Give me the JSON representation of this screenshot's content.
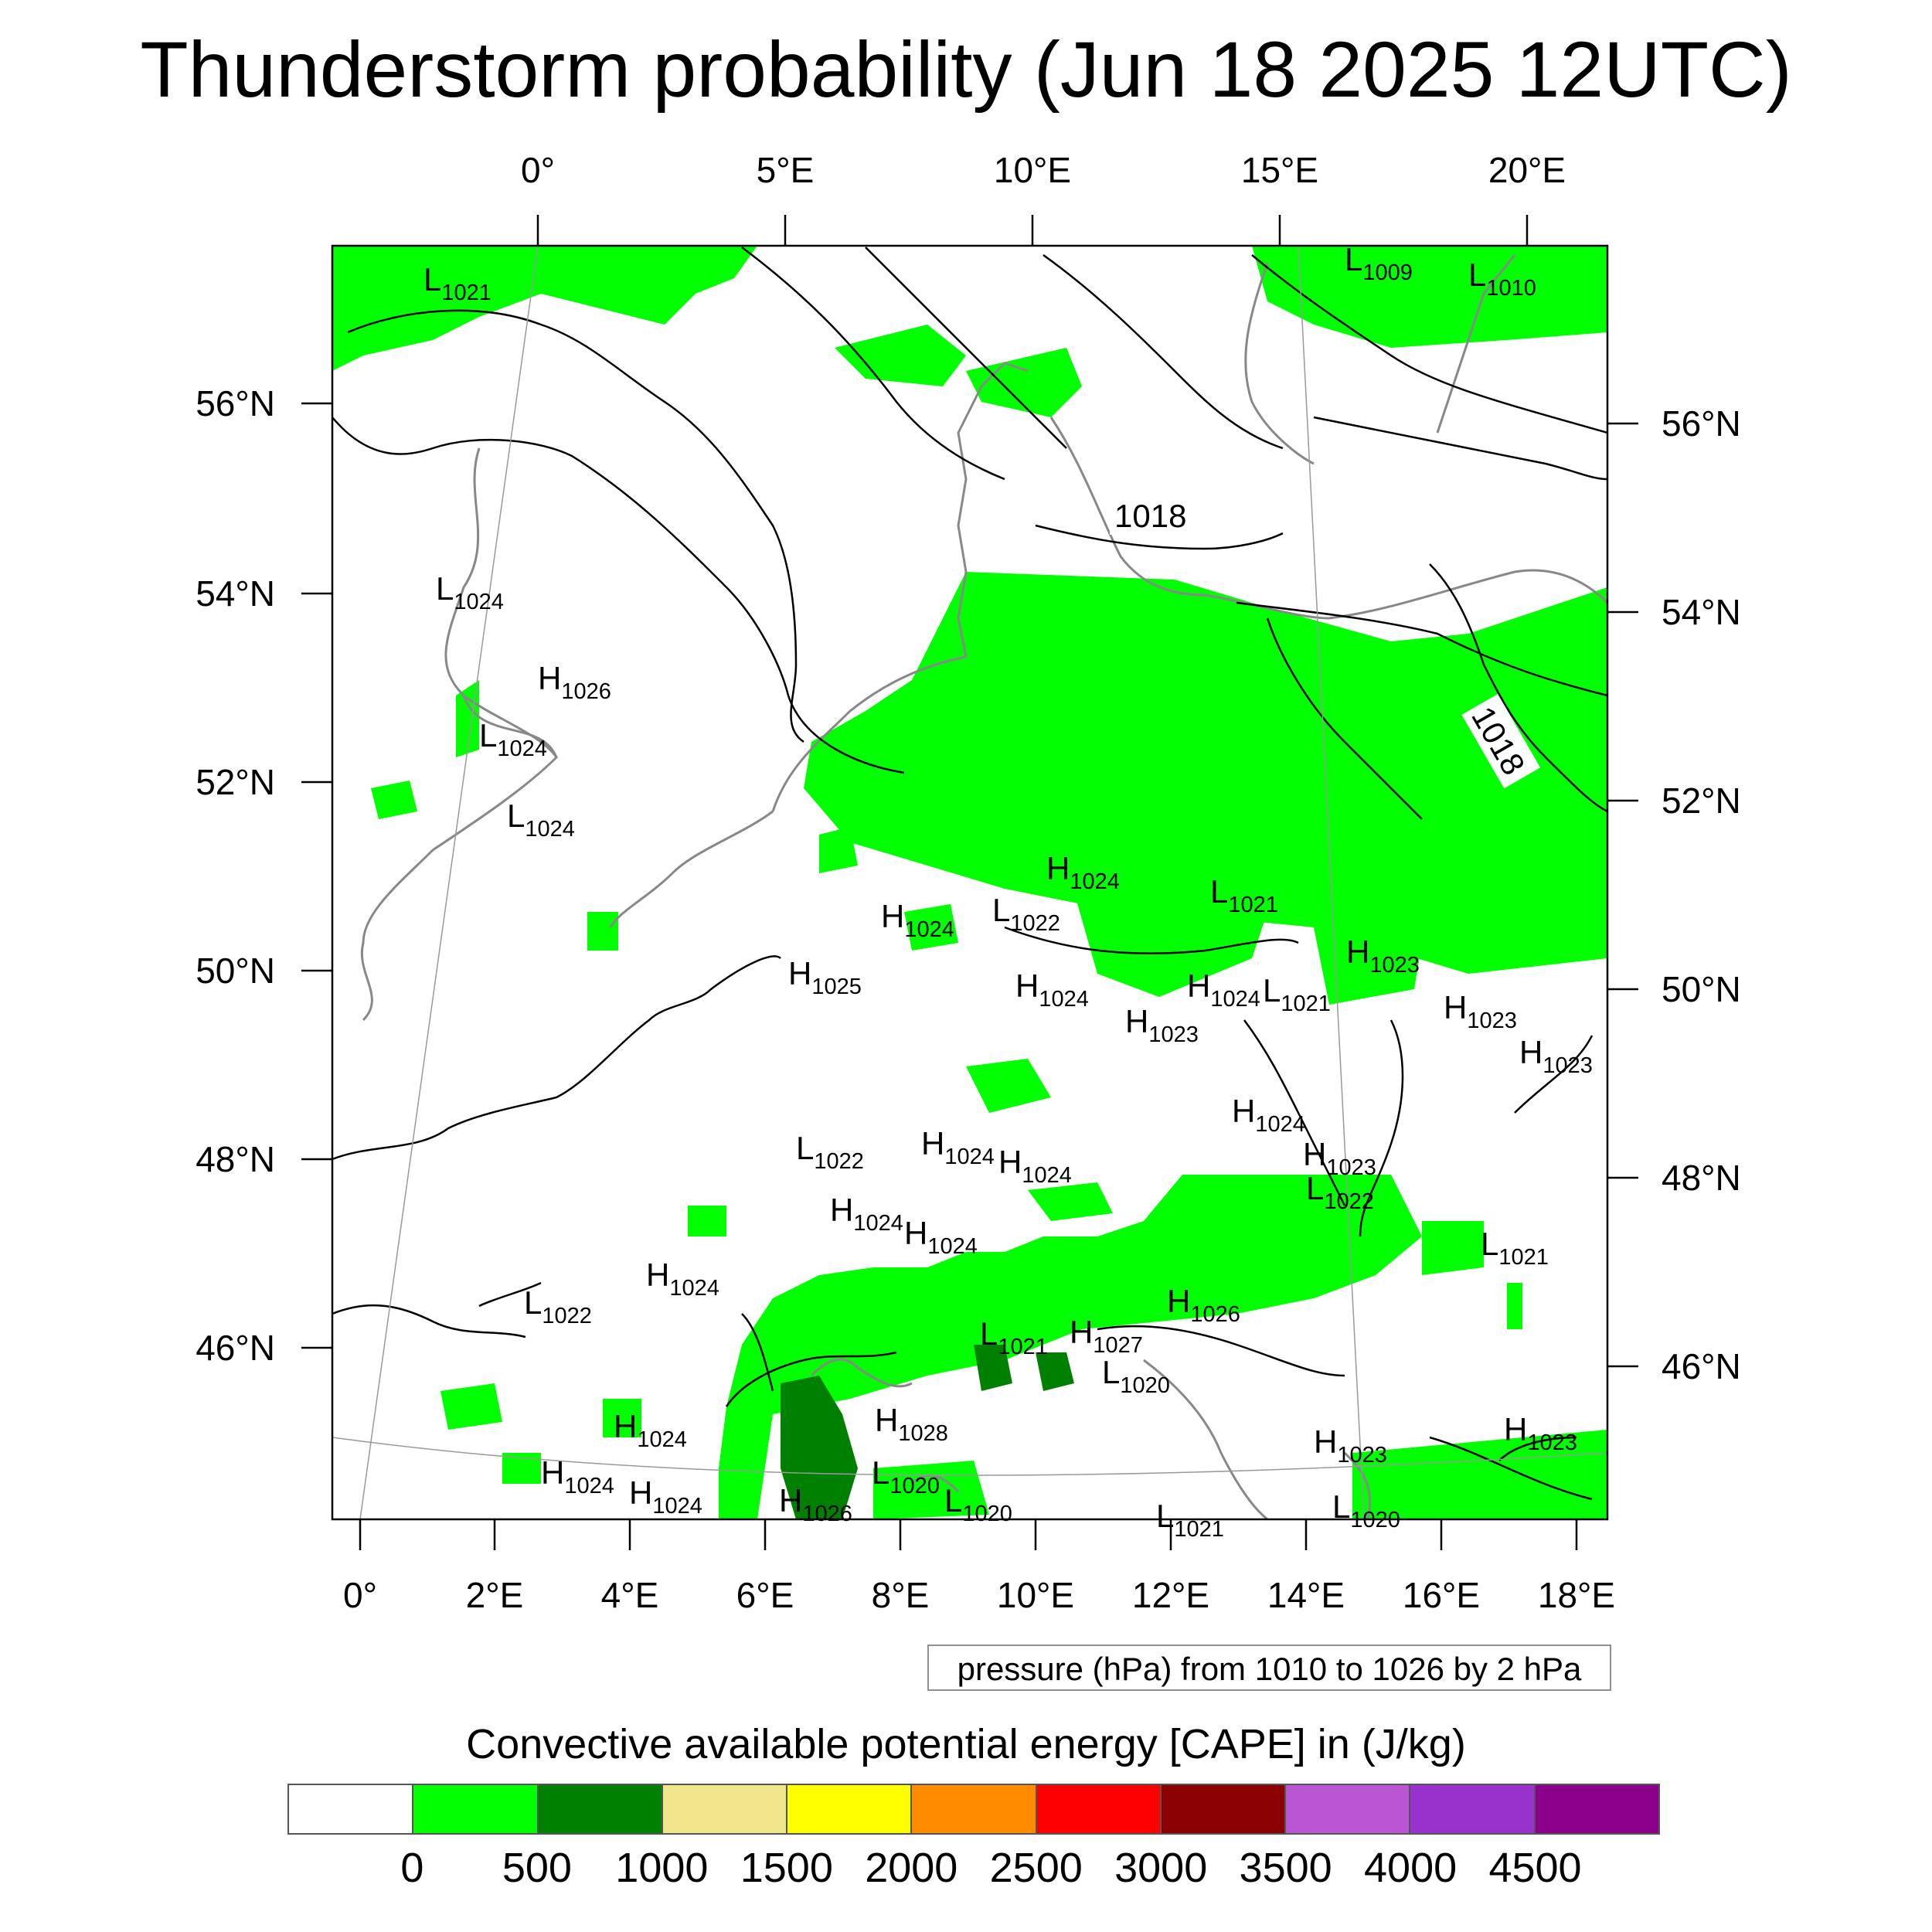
{
  "title": "Thunderstorm probability (Jun 18 2025 12UTC)",
  "map": {
    "top_lon_labels": [
      "0°",
      "5°E",
      "10°E",
      "15°E",
      "20°E"
    ],
    "bottom_lon_labels": [
      "0°",
      "2°E",
      "4°E",
      "6°E",
      "8°E",
      "10°E",
      "12°E",
      "14°E",
      "16°E",
      "18°E"
    ],
    "left_lat_labels": [
      "56°N",
      "54°N",
      "52°N",
      "50°N",
      "48°N",
      "46°N"
    ],
    "right_lat_labels": [
      "56°N",
      "54°N",
      "52°N",
      "50°N",
      "48°N",
      "46°N"
    ],
    "contour_labels": [
      "1018",
      "1018"
    ],
    "pressure_centers": [
      {
        "type": "L",
        "value": "1021"
      },
      {
        "type": "L",
        "value": "1009"
      },
      {
        "type": "L",
        "value": "1010"
      },
      {
        "type": "L",
        "value": "1024"
      },
      {
        "type": "H",
        "value": "1026"
      },
      {
        "type": "L",
        "value": "1024"
      },
      {
        "type": "L",
        "value": "1024"
      },
      {
        "type": "H",
        "value": "1024"
      },
      {
        "type": "L",
        "value": "1021"
      },
      {
        "type": "H",
        "value": "1024"
      },
      {
        "type": "L",
        "value": "1022"
      },
      {
        "type": "H",
        "value": "1023"
      },
      {
        "type": "H",
        "value": "1025"
      },
      {
        "type": "H",
        "value": "1024"
      },
      {
        "type": "H",
        "value": "1024"
      },
      {
        "type": "L",
        "value": "1021"
      },
      {
        "type": "H",
        "value": "1023"
      },
      {
        "type": "H",
        "value": "1023"
      },
      {
        "type": "H",
        "value": "1023"
      },
      {
        "type": "H",
        "value": "1024"
      },
      {
        "type": "H",
        "value": "1023"
      },
      {
        "type": "L",
        "value": "1022"
      },
      {
        "type": "L",
        "value": "1022"
      },
      {
        "type": "H",
        "value": "1024"
      },
      {
        "type": "H",
        "value": "1024"
      },
      {
        "type": "H",
        "value": "1024"
      },
      {
        "type": "H",
        "value": "1024"
      },
      {
        "type": "L",
        "value": "1021"
      },
      {
        "type": "H",
        "value": "1024"
      },
      {
        "type": "L",
        "value": "1022"
      },
      {
        "type": "H",
        "value": "1026"
      },
      {
        "type": "L",
        "value": "1021"
      },
      {
        "type": "H",
        "value": "1027"
      },
      {
        "type": "L",
        "value": "1020"
      },
      {
        "type": "H",
        "value": "1024"
      },
      {
        "type": "H",
        "value": "1028"
      },
      {
        "type": "H",
        "value": "1024"
      },
      {
        "type": "H",
        "value": "1024"
      },
      {
        "type": "H",
        "value": "1026"
      },
      {
        "type": "L",
        "value": "1020"
      },
      {
        "type": "L",
        "value": "1020"
      },
      {
        "type": "L",
        "value": "1021"
      },
      {
        "type": "H",
        "value": "1023"
      },
      {
        "type": "L",
        "value": "1020"
      },
      {
        "type": "H",
        "value": "1023"
      }
    ],
    "contour_note": "pressure (hPa) from 1010 to 1026 by 2 hPa"
  },
  "legend": {
    "title": "Convective available potential energy [CAPE] in (J/kg)",
    "colors": [
      "#ffffff",
      "#00ff00",
      "#008000",
      "#f0e68c",
      "#ffff00",
      "#ff8c00",
      "#ff0000",
      "#8b0000",
      "#ba55d3",
      "#9932cc",
      "#8b008b"
    ],
    "tick_labels": [
      "0",
      "500",
      "1000",
      "1500",
      "2000",
      "2500",
      "3000",
      "3500",
      "4000",
      "4500"
    ]
  }
}
